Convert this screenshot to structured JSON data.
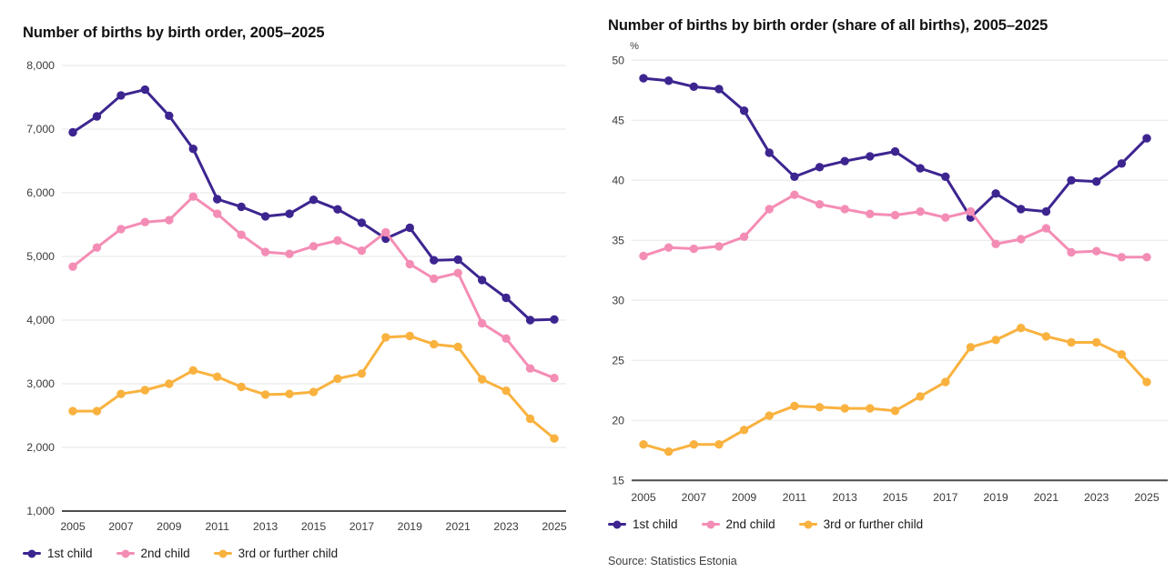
{
  "source": "Source: Statistics Estonia",
  "chart_data": [
    {
      "type": "line",
      "title": "Number of births by birth order, 2005–2025",
      "xlabel": "",
      "ylabel": "",
      "x": [
        2005,
        2006,
        2007,
        2008,
        2009,
        2010,
        2011,
        2012,
        2013,
        2014,
        2015,
        2016,
        2017,
        2018,
        2019,
        2020,
        2021,
        2022,
        2023,
        2024,
        2025
      ],
      "x_tick_labels": [
        "2005",
        "2007",
        "2009",
        "2011",
        "2013",
        "2015",
        "2017",
        "2019",
        "2021",
        "2023",
        "2025"
      ],
      "ylim": [
        1000,
        8000
      ],
      "y_ticks": [
        1000,
        2000,
        3000,
        4000,
        5000,
        6000,
        7000,
        8000
      ],
      "grid": true,
      "legend_position": "bottom",
      "series": [
        {
          "name": "1st child",
          "color": "#3d2590",
          "values": [
            6950,
            7200,
            7530,
            7620,
            7210,
            6690,
            5900,
            5780,
            5630,
            5670,
            5890,
            5740,
            5530,
            5280,
            5450,
            4940,
            4950,
            4630,
            4350,
            4000,
            4010
          ]
        },
        {
          "name": "2nd child",
          "color": "#f48db5",
          "values": [
            4840,
            5140,
            5430,
            5540,
            5570,
            5940,
            5670,
            5340,
            5070,
            5040,
            5160,
            5250,
            5090,
            5380,
            4880,
            4650,
            4740,
            3950,
            3710,
            3240,
            3090
          ]
        },
        {
          "name": "3rd or further child",
          "color": "#f9b23f",
          "values": [
            2570,
            2570,
            2840,
            2900,
            3000,
            3210,
            3110,
            2950,
            2830,
            2840,
            2870,
            3080,
            3160,
            3730,
            3750,
            3620,
            3580,
            3070,
            2890,
            2450,
            2140
          ]
        }
      ]
    },
    {
      "type": "line",
      "title": "Number of births by birth order (share of all births), 2005–2025",
      "xlabel": "",
      "ylabel": "",
      "y_axis_unit": "%",
      "x": [
        2005,
        2006,
        2007,
        2008,
        2009,
        2010,
        2011,
        2012,
        2013,
        2014,
        2015,
        2016,
        2017,
        2018,
        2019,
        2020,
        2021,
        2022,
        2023,
        2024,
        2025
      ],
      "x_tick_labels": [
        "2005",
        "2007",
        "2009",
        "2011",
        "2013",
        "2015",
        "2017",
        "2019",
        "2021",
        "2023",
        "2025"
      ],
      "ylim": [
        15,
        50
      ],
      "y_ticks": [
        15,
        20,
        25,
        30,
        35,
        40,
        45,
        50
      ],
      "grid": true,
      "legend_position": "bottom",
      "series": [
        {
          "name": "1st child",
          "color": "#3d2590",
          "values": [
            48.5,
            48.3,
            47.8,
            47.6,
            45.8,
            42.3,
            40.3,
            41.1,
            41.6,
            42.0,
            42.4,
            41.0,
            40.3,
            36.9,
            38.9,
            37.6,
            37.4,
            40.0,
            39.9,
            41.4,
            43.5
          ]
        },
        {
          "name": "2nd child",
          "color": "#f48db5",
          "values": [
            33.7,
            34.4,
            34.3,
            34.5,
            35.3,
            37.6,
            38.8,
            38.0,
            37.6,
            37.2,
            37.1,
            37.4,
            36.9,
            37.4,
            34.7,
            35.1,
            36.0,
            34.0,
            34.1,
            33.6,
            33.6
          ]
        },
        {
          "name": "3rd or further child",
          "color": "#f9b23f",
          "values": [
            18.0,
            17.4,
            18.0,
            18.0,
            19.2,
            20.4,
            21.2,
            21.1,
            21.0,
            21.0,
            20.8,
            22.0,
            23.2,
            26.1,
            26.7,
            27.7,
            27.0,
            26.5,
            26.5,
            25.5,
            23.2
          ]
        }
      ]
    }
  ]
}
